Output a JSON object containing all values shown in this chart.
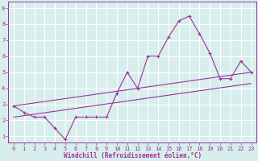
{
  "xlabel": "Windchill (Refroidissement éolien,°C)",
  "bg_color": "#d8eeed",
  "grid_color": "#ffffff",
  "line_color": "#993399",
  "xlim": [
    -0.5,
    23.5
  ],
  "ylim": [
    0.6,
    9.4
  ],
  "xticks": [
    0,
    1,
    2,
    3,
    4,
    5,
    6,
    7,
    8,
    9,
    10,
    11,
    12,
    13,
    14,
    15,
    16,
    17,
    18,
    19,
    20,
    21,
    22,
    23
  ],
  "yticks": [
    1,
    2,
    3,
    4,
    5,
    6,
    7,
    8,
    9
  ],
  "line1_x": [
    0,
    1,
    2,
    3,
    4,
    5,
    6,
    7,
    8,
    9,
    10,
    11,
    12,
    13,
    14,
    15,
    16,
    17,
    18,
    19,
    20,
    21,
    22,
    23
  ],
  "line1_y": [
    2.9,
    2.5,
    2.2,
    2.2,
    1.5,
    0.8,
    2.2,
    2.2,
    2.2,
    2.2,
    3.7,
    5.0,
    4.0,
    6.0,
    6.0,
    7.2,
    8.2,
    8.5,
    7.4,
    6.2,
    4.6,
    4.6,
    5.7,
    5.0
  ],
  "line2_x": [
    0,
    23
  ],
  "line2_y": [
    2.9,
    5.0
  ],
  "line3_x": [
    0,
    23
  ],
  "line3_y": [
    2.2,
    4.3
  ],
  "tick_fontsize": 5.0,
  "xlabel_fontsize": 5.5
}
